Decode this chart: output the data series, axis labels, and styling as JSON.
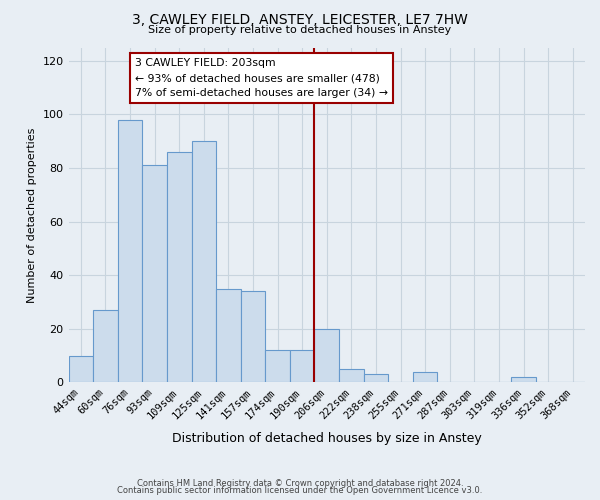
{
  "title": "3, CAWLEY FIELD, ANSTEY, LEICESTER, LE7 7HW",
  "subtitle": "Size of property relative to detached houses in Anstey",
  "xlabel": "Distribution of detached houses by size in Anstey",
  "ylabel": "Number of detached properties",
  "bar_color": "#ccdcec",
  "bar_edge_color": "#6699cc",
  "background_color": "#e8eef4",
  "grid_color": "#d0d8e0",
  "categories": [
    "44sqm",
    "60sqm",
    "76sqm",
    "93sqm",
    "109sqm",
    "125sqm",
    "141sqm",
    "157sqm",
    "174sqm",
    "190sqm",
    "206sqm",
    "222sqm",
    "238sqm",
    "255sqm",
    "271sqm",
    "287sqm",
    "303sqm",
    "319sqm",
    "336sqm",
    "352sqm",
    "368sqm"
  ],
  "values": [
    10,
    27,
    98,
    81,
    86,
    90,
    35,
    34,
    12,
    12,
    20,
    5,
    3,
    0,
    4,
    0,
    0,
    0,
    2,
    0,
    0
  ],
  "ylim": [
    0,
    125
  ],
  "yticks": [
    0,
    20,
    40,
    60,
    80,
    100,
    120
  ],
  "property_line_index": 10,
  "property_line_color": "#990000",
  "annotation_text_line1": "3 CAWLEY FIELD: 203sqm",
  "annotation_text_line2": "← 93% of detached houses are smaller (478)",
  "annotation_text_line3": "7% of semi-detached houses are larger (34) →",
  "annotation_box_color": "#ffffff",
  "annotation_box_edge": "#990000",
  "footer_line1": "Contains HM Land Registry data © Crown copyright and database right 2024.",
  "footer_line2": "Contains public sector information licensed under the Open Government Licence v3.0.",
  "title_fontsize": 10,
  "subtitle_fontsize": 8,
  "xlabel_fontsize": 9,
  "ylabel_fontsize": 8,
  "tick_fontsize": 7.5,
  "footer_fontsize": 6
}
